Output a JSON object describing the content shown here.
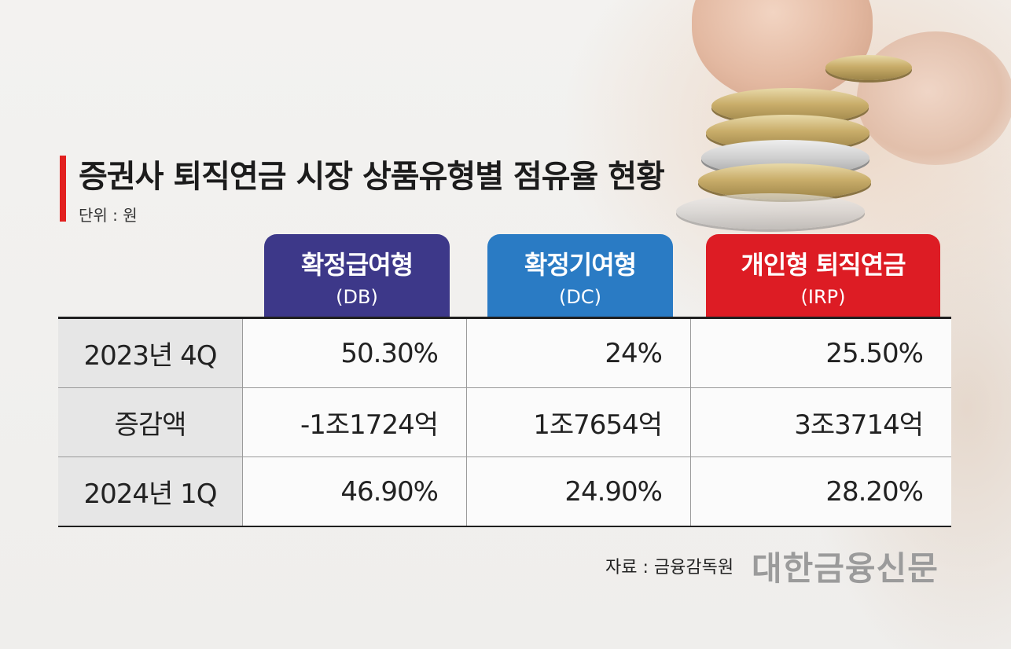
{
  "title": "증권사 퇴직연금 시장 상품유형별 점유율 현황",
  "unit_label": "단위 : 원",
  "colors": {
    "accent": "#e2201f",
    "db": "#3d3889",
    "dc": "#2a7bc4",
    "irp": "#dd1c24"
  },
  "chart_data": {
    "type": "table",
    "title": "증권사 퇴직연금 시장 상품유형별 점유율 현황",
    "unit": "단위 : 원",
    "columns": [
      {
        "name": "확정급여형",
        "sub": "(DB)"
      },
      {
        "name": "확정기여형",
        "sub": "(DC)"
      },
      {
        "name": "개인형 퇴직연금",
        "sub": "(IRP)"
      }
    ],
    "rows": [
      {
        "label": "2023년 4Q",
        "values": [
          "50.30%",
          "24%",
          "25.50%"
        ]
      },
      {
        "label": "증감액",
        "values": [
          "-1조1724억",
          "1조7654억",
          "3조3714억"
        ]
      },
      {
        "label": "2024년 1Q",
        "values": [
          "46.90%",
          "24.90%",
          "28.20%"
        ]
      }
    ]
  },
  "source": "자료 : 금융감독원",
  "brand": "대한금융신문"
}
